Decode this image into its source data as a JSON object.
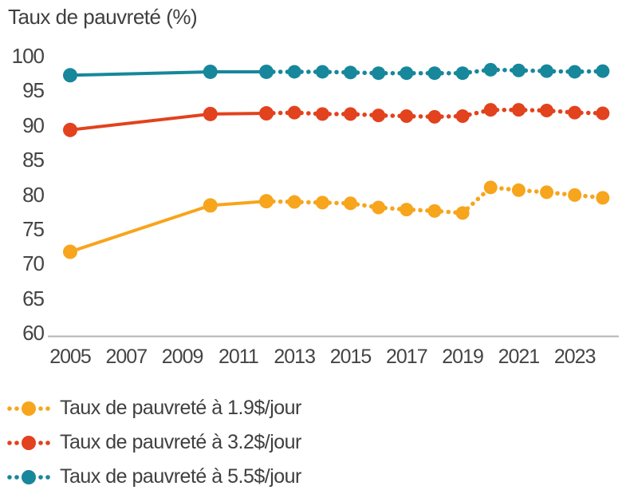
{
  "title": "Taux de pauvreté (%)",
  "colors": {
    "series_19": "#F7A51C",
    "series_32": "#E2421D",
    "series_55": "#17879B",
    "axis_line": "#b3b3b3",
    "text": "#3f3f3f"
  },
  "chart_data": {
    "type": "line",
    "title": "Taux de pauvreté (%)",
    "xlabel": "",
    "ylabel": "Taux de pauvreté (%)",
    "grid": false,
    "legend_position": "bottom-left",
    "ylim": [
      60,
      100
    ],
    "x": [
      2005,
      2010,
      2012,
      2013,
      2014,
      2015,
      2016,
      2017,
      2018,
      2019,
      2020,
      2021,
      2022,
      2023,
      2024
    ],
    "solid_until_x": 2012,
    "line_style_note": "solid line through survey years 2005-2010-2012, dotted line with round markers from 2012 to 2024",
    "series": [
      {
        "name": "Taux de pauvreté à 1.9$/jour",
        "color": "#F7A51C",
        "values": [
          71.7,
          78.4,
          79.0,
          78.9,
          78.8,
          78.7,
          78.1,
          77.8,
          77.6,
          77.3,
          81.0,
          80.6,
          80.3,
          79.9,
          79.5
        ]
      },
      {
        "name": "Taux de pauvreté à 3.2$/jour",
        "color": "#E2421D",
        "values": [
          89.3,
          91.6,
          91.7,
          91.8,
          91.6,
          91.6,
          91.4,
          91.3,
          91.2,
          91.3,
          92.2,
          92.2,
          92.1,
          91.8,
          91.7
        ]
      },
      {
        "name": "Taux de pauvreté à 5.5$/jour",
        "color": "#17879B",
        "values": [
          97.2,
          97.7,
          97.7,
          97.7,
          97.7,
          97.6,
          97.5,
          97.5,
          97.5,
          97.5,
          98.0,
          97.9,
          97.8,
          97.7,
          97.8
        ]
      }
    ],
    "y_ticks": [
      100,
      95,
      90,
      85,
      80,
      75,
      70,
      65,
      60
    ],
    "x_ticks": [
      2005,
      2007,
      2009,
      2011,
      2013,
      2015,
      2017,
      2019,
      2021,
      2023
    ]
  }
}
